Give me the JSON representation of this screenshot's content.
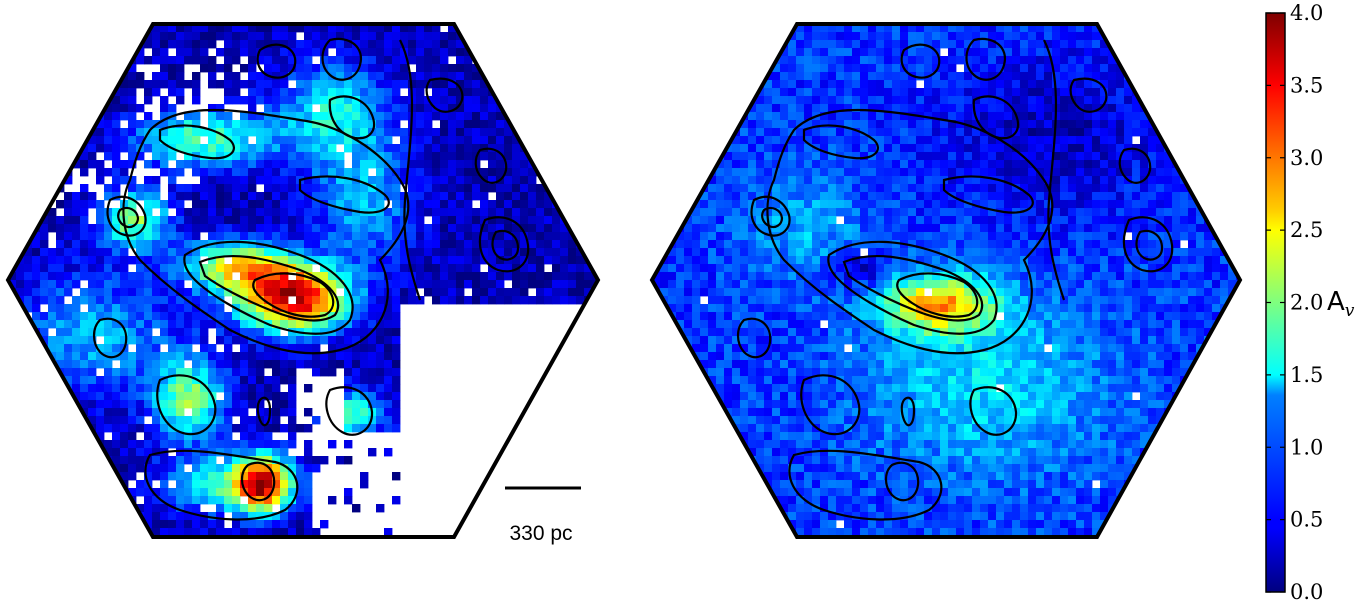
{
  "chart_data": {
    "type": "heatmap",
    "panels": [
      {
        "name": "",
        "colormap": "jet",
        "masked_regions": true,
        "contours": true
      },
      {
        "name": "",
        "colormap": "jet",
        "masked_regions": false,
        "contours": true
      }
    ],
    "colorbar": {
      "label": "A",
      "label_subscript": "v",
      "range": [
        0.0,
        4.0
      ],
      "ticks": [
        "0.0",
        "0.5",
        "1.0",
        "1.5",
        "2.0",
        "2.5",
        "3.0",
        "3.5",
        "4.0"
      ]
    },
    "scale_bar": {
      "label": "330 pc"
    },
    "colors": {
      "low": "#00007f",
      "mid": "#7fff7f",
      "high": "#7f0000",
      "outline": "#000000"
    }
  }
}
